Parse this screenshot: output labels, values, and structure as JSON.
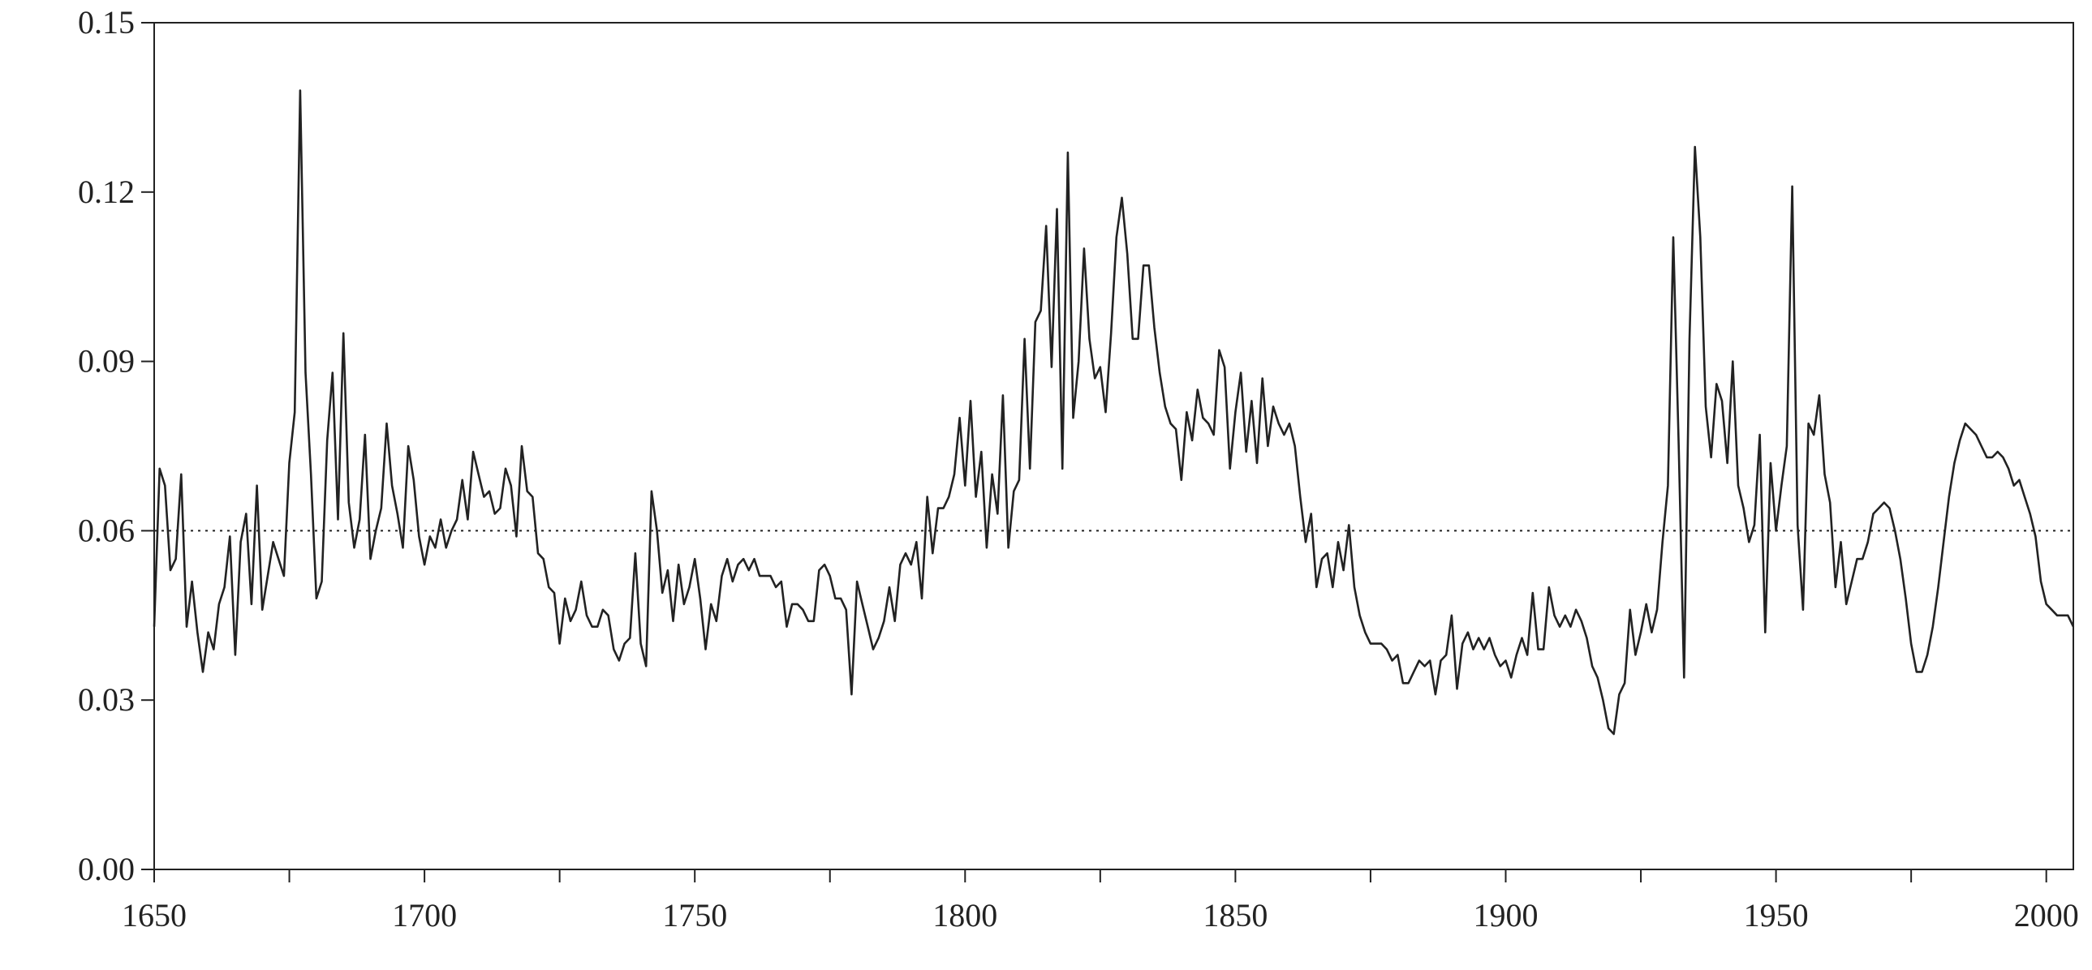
{
  "chart_data": {
    "type": "line",
    "title": "",
    "xlabel": "",
    "ylabel": "",
    "xlim": [
      1650,
      2005
    ],
    "ylim": [
      0.0,
      0.15
    ],
    "grid": false,
    "x_ticks": [
      1650,
      1700,
      1750,
      1800,
      1850,
      1900,
      1950,
      2000
    ],
    "x_tick_labels": [
      "1650",
      "1700",
      "1750",
      "1800",
      "1850",
      "1900",
      "1950",
      "2000"
    ],
    "x_minor_ticks": [
      1675,
      1725,
      1775,
      1825,
      1875,
      1925,
      1975
    ],
    "y_ticks": [
      0.0,
      0.03,
      0.06,
      0.09,
      0.12,
      0.15
    ],
    "y_tick_labels": [
      "0.00",
      "0.03",
      "0.06",
      "0.09",
      "0.12",
      "0.15"
    ],
    "reference_line": {
      "y": 0.06,
      "style": "dotted"
    },
    "series": [
      {
        "x": [
          1650,
          1651,
          1652,
          1653,
          1654,
          1655,
          1656,
          1657,
          1658,
          1659,
          1660,
          1661,
          1662,
          1663,
          1664,
          1665,
          1666,
          1667,
          1668,
          1669,
          1670,
          1671,
          1672,
          1673,
          1674,
          1675,
          1676,
          1677,
          1678,
          1679,
          1680,
          1681,
          1682,
          1683,
          1684,
          1685,
          1686,
          1687,
          1688,
          1689,
          1690,
          1691,
          1692,
          1693,
          1694,
          1695,
          1696,
          1697,
          1698,
          1699,
          1700,
          1701,
          1702,
          1703,
          1704,
          1705,
          1706,
          1707,
          1708,
          1709,
          1710,
          1711,
          1712,
          1713,
          1714,
          1715,
          1716,
          1717,
          1718,
          1719,
          1720,
          1721,
          1722,
          1723,
          1724,
          1725,
          1726,
          1727,
          1728,
          1729,
          1730,
          1731,
          1732,
          1733,
          1734,
          1735,
          1736,
          1737,
          1738,
          1739,
          1740,
          1741,
          1742,
          1743,
          1744,
          1745,
          1746,
          1747,
          1748,
          1749,
          1750,
          1751,
          1752,
          1753,
          1754,
          1755,
          1756,
          1757,
          1758,
          1759,
          1760,
          1761,
          1762,
          1763,
          1764,
          1765,
          1766,
          1767,
          1768,
          1769,
          1770,
          1771,
          1772,
          1773,
          1774,
          1775,
          1776,
          1777,
          1778,
          1779,
          1780,
          1781,
          1782,
          1783,
          1784,
          1785,
          1786,
          1787,
          1788,
          1789,
          1790,
          1791,
          1792,
          1793,
          1794,
          1795,
          1796,
          1797,
          1798,
          1799,
          1800,
          1801,
          1802,
          1803,
          1804,
          1805,
          1806,
          1807,
          1808,
          1809,
          1810,
          1811,
          1812,
          1813,
          1814,
          1815,
          1816,
          1817,
          1818,
          1819,
          1820,
          1821,
          1822,
          1823,
          1824,
          1825,
          1826,
          1827,
          1828,
          1829,
          1830,
          1831,
          1832,
          1833,
          1834,
          1835,
          1836,
          1837,
          1838,
          1839,
          1840,
          1841,
          1842,
          1843,
          1844,
          1845,
          1846,
          1847,
          1848,
          1849,
          1850,
          1851,
          1852,
          1853,
          1854,
          1855,
          1856,
          1857,
          1858,
          1859,
          1860,
          1861,
          1862,
          1863,
          1864,
          1865,
          1866,
          1867,
          1868,
          1869,
          1870,
          1871,
          1872,
          1873,
          1874,
          1875,
          1876,
          1877,
          1878,
          1879,
          1880,
          1881,
          1882,
          1883,
          1884,
          1885,
          1886,
          1887,
          1888,
          1889,
          1890,
          1891,
          1892,
          1893,
          1894,
          1895,
          1896,
          1897,
          1898,
          1899,
          1900,
          1901,
          1902,
          1903,
          1904,
          1905,
          1906,
          1907,
          1908,
          1909,
          1910,
          1911,
          1912,
          1913,
          1914,
          1915,
          1916,
          1917,
          1918,
          1919,
          1920,
          1921,
          1922,
          1923,
          1924,
          1925,
          1926,
          1927,
          1928,
          1929,
          1930,
          1931,
          1932,
          1933,
          1934,
          1935,
          1936,
          1937,
          1938,
          1939,
          1940,
          1941,
          1942,
          1943,
          1944,
          1945,
          1946,
          1947,
          1948,
          1949,
          1950,
          1951,
          1952,
          1953,
          1954,
          1955,
          1956,
          1957,
          1958,
          1959,
          1960,
          1961,
          1962,
          1963,
          1964,
          1965,
          1966,
          1967,
          1968,
          1969,
          1970,
          1971,
          1972,
          1973,
          1974,
          1975,
          1976,
          1977,
          1978,
          1979,
          1980,
          1981,
          1982,
          1983,
          1984,
          1985,
          1986,
          1987,
          1988,
          1989,
          1990,
          1991,
          1992,
          1993,
          1994,
          1995,
          1996,
          1997,
          1998,
          1999,
          2000,
          2001,
          2002,
          2003,
          2004,
          2005
        ],
        "y": [
          0.043,
          0.071,
          0.068,
          0.053,
          0.055,
          0.07,
          0.043,
          0.051,
          0.042,
          0.035,
          0.042,
          0.039,
          0.047,
          0.05,
          0.059,
          0.038,
          0.058,
          0.063,
          0.047,
          0.068,
          0.046,
          0.052,
          0.058,
          0.055,
          0.052,
          0.072,
          0.081,
          0.138,
          0.088,
          0.07,
          0.048,
          0.051,
          0.076,
          0.088,
          0.062,
          0.095,
          0.065,
          0.057,
          0.062,
          0.077,
          0.055,
          0.06,
          0.064,
          0.079,
          0.068,
          0.063,
          0.057,
          0.075,
          0.069,
          0.059,
          0.054,
          0.059,
          0.057,
          0.062,
          0.057,
          0.06,
          0.062,
          0.069,
          0.062,
          0.074,
          0.07,
          0.066,
          0.067,
          0.063,
          0.064,
          0.071,
          0.068,
          0.059,
          0.075,
          0.067,
          0.066,
          0.056,
          0.055,
          0.05,
          0.049,
          0.04,
          0.048,
          0.044,
          0.046,
          0.051,
          0.045,
          0.043,
          0.043,
          0.046,
          0.045,
          0.039,
          0.037,
          0.04,
          0.041,
          0.056,
          0.04,
          0.036,
          0.067,
          0.06,
          0.049,
          0.053,
          0.044,
          0.054,
          0.047,
          0.05,
          0.055,
          0.048,
          0.039,
          0.047,
          0.044,
          0.052,
          0.055,
          0.051,
          0.054,
          0.055,
          0.053,
          0.055,
          0.052,
          0.052,
          0.052,
          0.05,
          0.051,
          0.043,
          0.047,
          0.047,
          0.046,
          0.044,
          0.044,
          0.053,
          0.054,
          0.052,
          0.048,
          0.048,
          0.046,
          0.031,
          0.051,
          0.047,
          0.043,
          0.039,
          0.041,
          0.044,
          0.05,
          0.044,
          0.054,
          0.056,
          0.054,
          0.058,
          0.048,
          0.066,
          0.056,
          0.064,
          0.064,
          0.066,
          0.07,
          0.08,
          0.068,
          0.083,
          0.066,
          0.074,
          0.057,
          0.07,
          0.063,
          0.084,
          0.057,
          0.067,
          0.069,
          0.094,
          0.071,
          0.097,
          0.099,
          0.114,
          0.089,
          0.117,
          0.071,
          0.127,
          0.08,
          0.09,
          0.11,
          0.094,
          0.087,
          0.089,
          0.081,
          0.095,
          0.112,
          0.119,
          0.109,
          0.094,
          0.094,
          0.107,
          0.107,
          0.096,
          0.088,
          0.082,
          0.079,
          0.078,
          0.069,
          0.081,
          0.076,
          0.085,
          0.08,
          0.079,
          0.077,
          0.092,
          0.089,
          0.071,
          0.081,
          0.088,
          0.074,
          0.083,
          0.072,
          0.087,
          0.075,
          0.082,
          0.079,
          0.077,
          0.079,
          0.075,
          0.066,
          0.058,
          0.063,
          0.05,
          0.055,
          0.056,
          0.05,
          0.058,
          0.053,
          0.061,
          0.05,
          0.045,
          0.042,
          0.04,
          0.04,
          0.04,
          0.039,
          0.037,
          0.038,
          0.033,
          0.033,
          0.035,
          0.037,
          0.036,
          0.037,
          0.031,
          0.037,
          0.038,
          0.045,
          0.032,
          0.04,
          0.042,
          0.039,
          0.041,
          0.039,
          0.041,
          0.038,
          0.036,
          0.037,
          0.034,
          0.038,
          0.041,
          0.038,
          0.049,
          0.039,
          0.039,
          0.05,
          0.045,
          0.043,
          0.045,
          0.043,
          0.046,
          0.044,
          0.041,
          0.036,
          0.034,
          0.03,
          0.025,
          0.024,
          0.031,
          0.033,
          0.046,
          0.038,
          0.042,
          0.047,
          0.042,
          0.046,
          0.058,
          0.068,
          0.112,
          0.075,
          0.034,
          0.094,
          0.128,
          0.112,
          0.082,
          0.073,
          0.086,
          0.083,
          0.072,
          0.09,
          0.068,
          0.064,
          0.058,
          0.061,
          0.077,
          0.042,
          0.072,
          0.06,
          0.068,
          0.075,
          0.121,
          0.061,
          0.046,
          0.079,
          0.077,
          0.084,
          0.07,
          0.065,
          0.05,
          0.058,
          0.047,
          0.051,
          0.055,
          0.055,
          0.058,
          0.063,
          0.064,
          0.065,
          0.064,
          0.06,
          0.055,
          0.048,
          0.04,
          0.035,
          0.035,
          0.038,
          0.043,
          0.05,
          0.058,
          0.066,
          0.072,
          0.076,
          0.079,
          0.078,
          0.077,
          0.075,
          0.073,
          0.073,
          0.074,
          0.073,
          0.071,
          0.068,
          0.069,
          0.066,
          0.063,
          0.059,
          0.051,
          0.047,
          0.046,
          0.045,
          0.045,
          0.045,
          0.043
        ]
      }
    ]
  }
}
